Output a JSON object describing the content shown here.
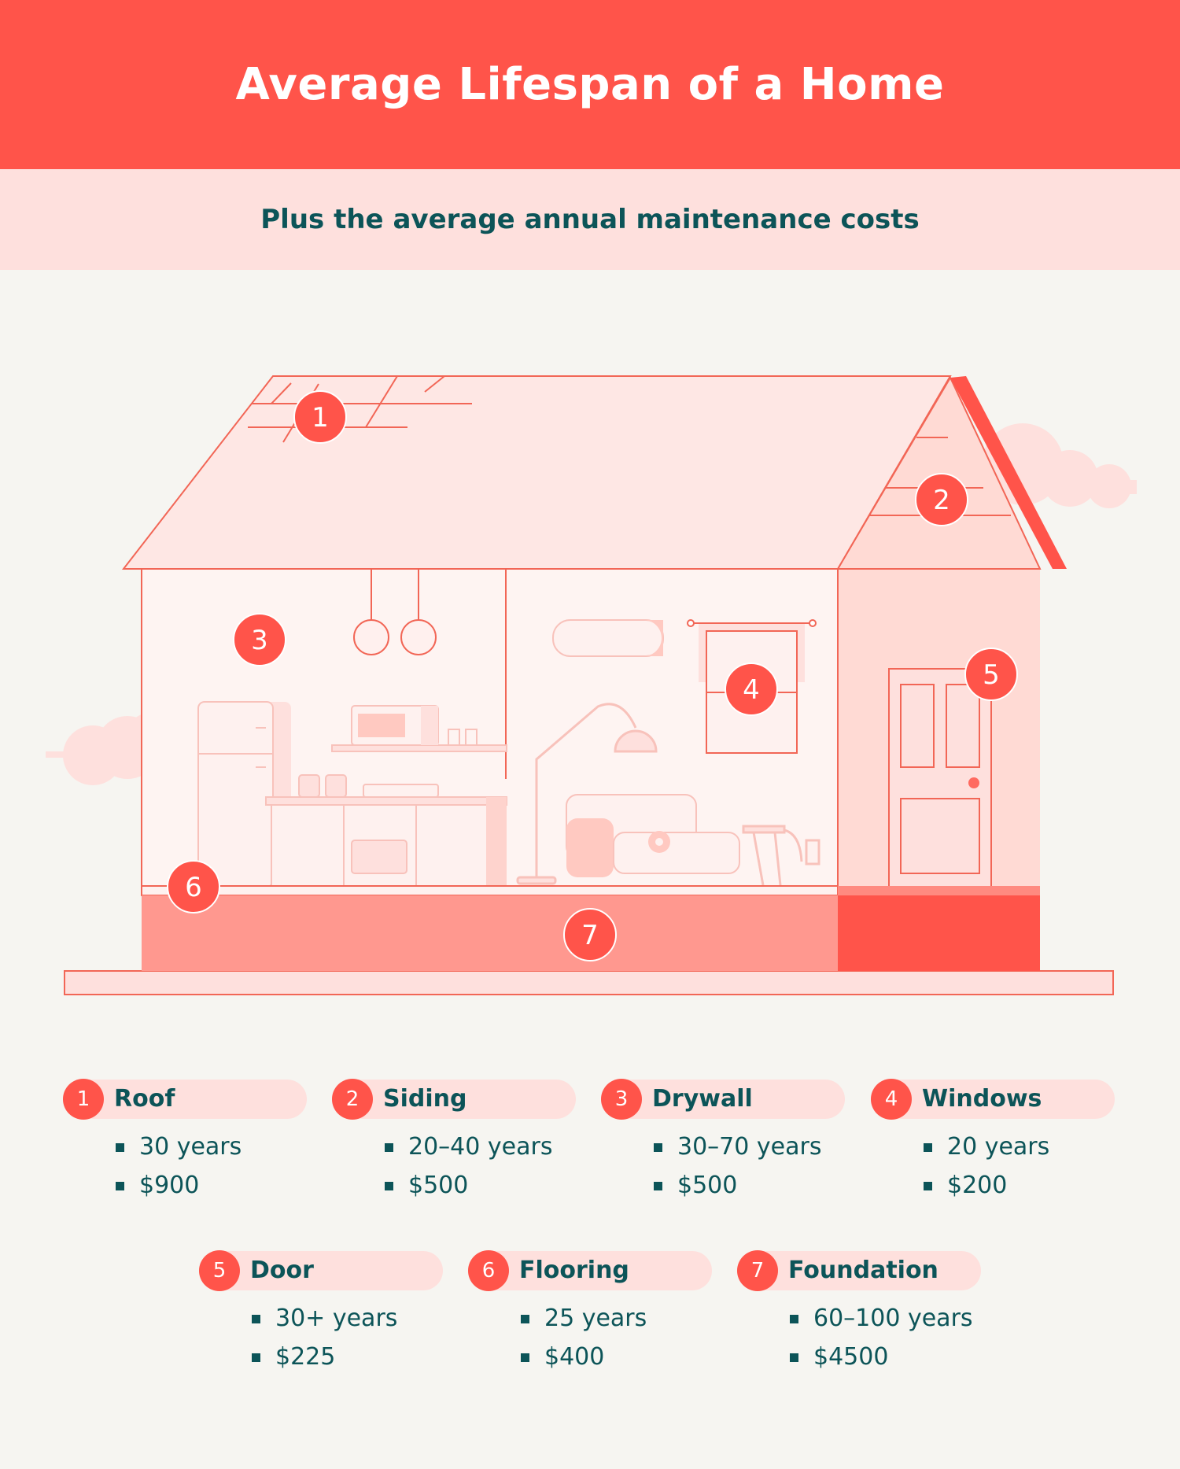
{
  "title": "Average Lifespan of a Home",
  "subtitle": "Plus the average annual maintenance costs",
  "markers": [
    "1",
    "2",
    "3",
    "4",
    "5",
    "6",
    "7"
  ],
  "colors": {
    "header": "#ff544a",
    "subheader": "#fee0dd",
    "background": "#f6f5f1",
    "accent": "#ff544a",
    "text": "#0c5458"
  },
  "items": [
    {
      "num": "1",
      "name": "Roof",
      "lifespan": "30 years",
      "cost": "$900"
    },
    {
      "num": "2",
      "name": "Siding",
      "lifespan": "20–40 years",
      "cost": "$500"
    },
    {
      "num": "3",
      "name": "Drywall",
      "lifespan": "30–70 years",
      "cost": "$500"
    },
    {
      "num": "4",
      "name": "Windows",
      "lifespan": "20 years",
      "cost": "$200"
    },
    {
      "num": "5",
      "name": "Door",
      "lifespan": "30+ years",
      "cost": "$225"
    },
    {
      "num": "6",
      "name": "Flooring",
      "lifespan": "25 years",
      "cost": "$400"
    },
    {
      "num": "7",
      "name": "Foundation",
      "lifespan": "60–100 years",
      "cost": "$4500"
    }
  ]
}
